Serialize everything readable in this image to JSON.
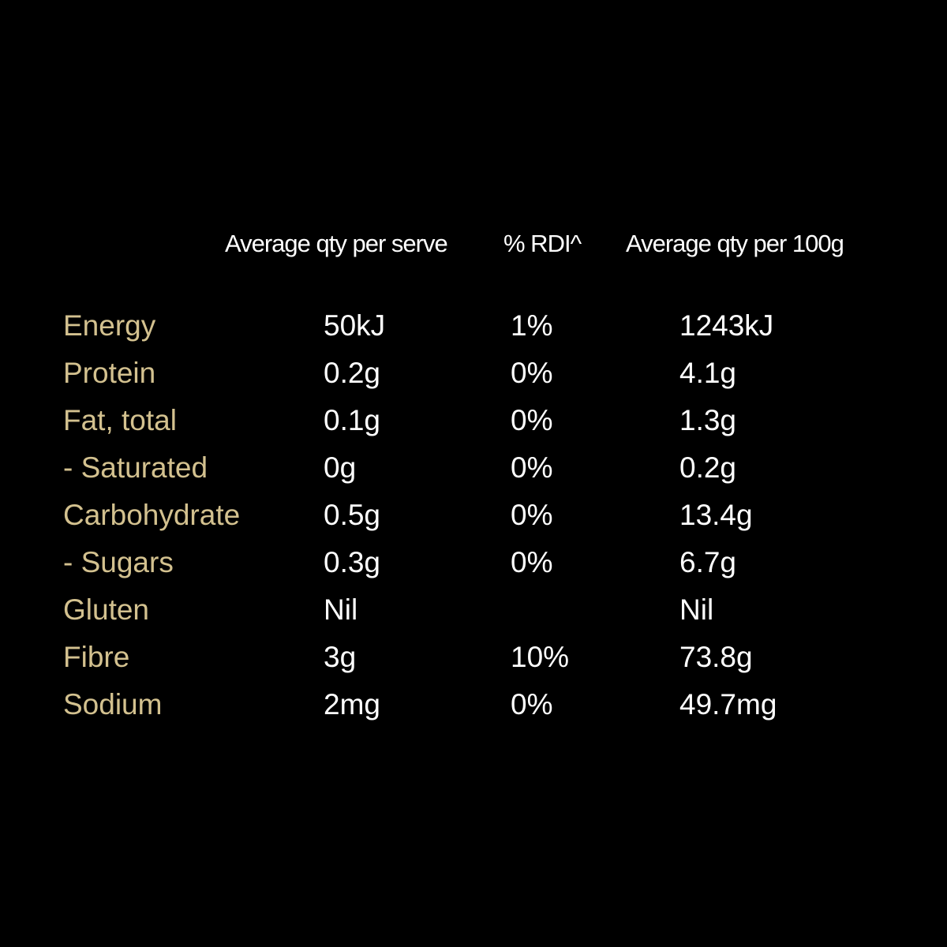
{
  "table": {
    "headers": [
      "Average qty per serve",
      "% RDI^",
      "Average qty per 100g"
    ],
    "rows": [
      [
        "Energy",
        "50kJ",
        "1%",
        "1243kJ"
      ],
      [
        "Protein",
        "0.2g",
        "0%",
        "4.1g"
      ],
      [
        "Fat, total",
        "0.1g",
        "0%",
        "1.3g"
      ],
      [
        "- Saturated",
        "0g",
        "0%",
        "0.2g"
      ],
      [
        "Carbohydrate",
        "0.5g",
        "0%",
        "13.4g"
      ],
      [
        "- Sugars",
        "0.3g",
        "0%",
        "6.7g"
      ],
      [
        "Gluten",
        "Nil",
        null,
        "Nil"
      ],
      [
        "Fibre",
        "3g",
        "10%",
        "73.8g"
      ],
      [
        "Sodium",
        "2mg",
        "0%",
        "49.7mg"
      ]
    ]
  }
}
